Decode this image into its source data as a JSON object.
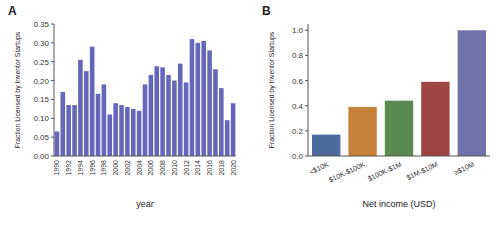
{
  "chart_data": [
    {
      "type": "bar",
      "title": "A",
      "categories": [
        "1990",
        null,
        "1992",
        null,
        "1994",
        null,
        "1996",
        null,
        "1998",
        null,
        "2000",
        null,
        "2002",
        null,
        "2004",
        null,
        "2006",
        null,
        "2008",
        null,
        "2010",
        null,
        "2012",
        null,
        "2014",
        null,
        "2016",
        null,
        "2018",
        null,
        "2020"
      ],
      "values": [
        0.065,
        0.17,
        0.135,
        0.135,
        0.255,
        0.225,
        0.29,
        0.165,
        0.19,
        0.11,
        0.14,
        0.135,
        0.13,
        0.125,
        0.12,
        0.19,
        0.215,
        0.238,
        0.235,
        0.215,
        0.2,
        0.245,
        0.195,
        0.31,
        0.3,
        0.305,
        0.28,
        0.23,
        0.18,
        0.095,
        0.14
      ],
      "color": "#6666bb",
      "x_label": "year",
      "y_label": "Fraction Licensed by Inventor Startups",
      "ylim": [
        0,
        0.35
      ],
      "yticks": [
        {
          "value": 0,
          "label": "0.00"
        },
        {
          "value": 0.05,
          "label": "0.05"
        },
        {
          "value": 0.1,
          "label": "0.10"
        },
        {
          "value": 0.15,
          "label": "0.15"
        },
        {
          "value": 0.2,
          "label": "0.20"
        },
        {
          "value": 0.25,
          "label": "0.25"
        },
        {
          "value": 0.3,
          "label": "0.30"
        },
        {
          "value": 0.35,
          "label": "0.35"
        }
      ],
      "grid": false
    },
    {
      "type": "bar",
      "title": "B",
      "categories": [
        "<$10K",
        "$10K-$100K",
        "$100K-$1M",
        "$1M-$10M",
        "≥$10M"
      ],
      "values": [
        0.17,
        0.39,
        0.44,
        0.59,
        1.0
      ],
      "colors": [
        "#4c6a9c",
        "#c8813a",
        "#5a8a50",
        "#9c4444",
        "#7272aa"
      ],
      "x_label": "Net income (USD)",
      "y_label": "Fraction Licensed by Inventor Startups",
      "ylim": [
        0,
        1.05
      ],
      "yticks": [
        {
          "value": 0,
          "label": "0.0"
        },
        {
          "value": 0.2,
          "label": "0.2"
        },
        {
          "value": 0.4,
          "label": "0.4"
        },
        {
          "value": 0.6,
          "label": "0.6"
        },
        {
          "value": 0.8,
          "label": "0.8"
        },
        {
          "value": 1.0,
          "label": "1.0"
        }
      ],
      "grid": false
    }
  ]
}
